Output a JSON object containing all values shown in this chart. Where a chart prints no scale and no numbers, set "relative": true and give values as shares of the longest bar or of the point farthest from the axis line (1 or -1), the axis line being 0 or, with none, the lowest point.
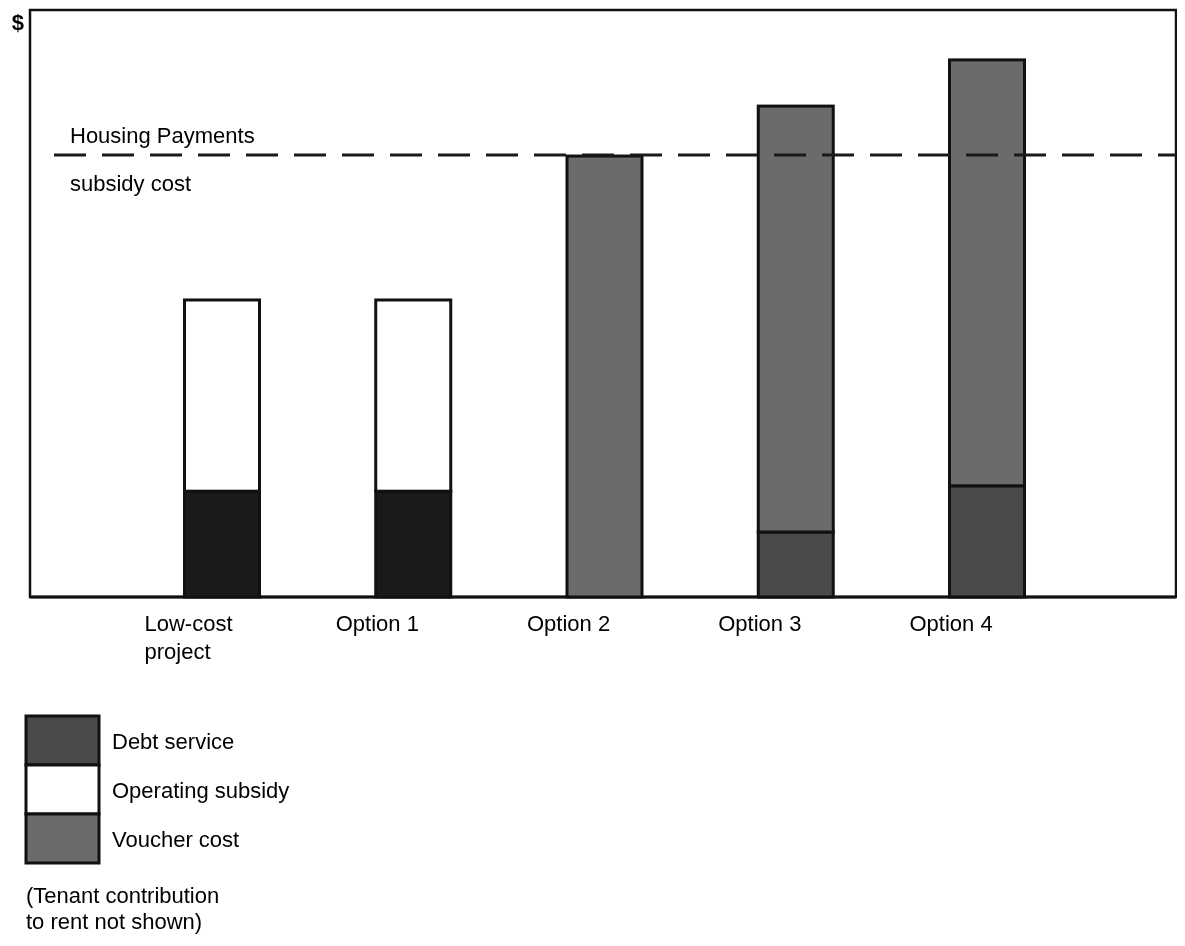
{
  "chart_data": {
    "type": "bar",
    "stacked": true,
    "relative": true,
    "ylabel": "$",
    "categories": [
      "Low-cost project",
      "Option 1",
      "Option 2",
      "Option 3",
      "Option 4"
    ],
    "series": [
      {
        "name": "Debt service",
        "color": "#4a4a4a",
        "colors": [
          "#1a1a1a",
          "#1a1a1a",
          null,
          "#4a4a4a",
          "#4a4a4a"
        ],
        "values": [
          0.197,
          0.197,
          null,
          0.121,
          0.207
        ]
      },
      {
        "name": "Operating subsidy",
        "color": "#ffffff",
        "values": [
          0.356,
          0.356,
          null,
          null,
          null
        ]
      },
      {
        "name": "Voucher cost",
        "color": "#6b6b6b",
        "values": [
          null,
          null,
          0.821,
          0.793,
          0.793
        ]
      }
    ],
    "ref_lines": [
      {
        "axis": "y",
        "value": 0.823,
        "label": "Housing Payments subsidy cost",
        "color": "#1a1a1a",
        "line_style": "dashed"
      }
    ],
    "legend": "bottom left",
    "annotations": [
      "(Tenant contribution to rent not shown)"
    ]
  }
}
